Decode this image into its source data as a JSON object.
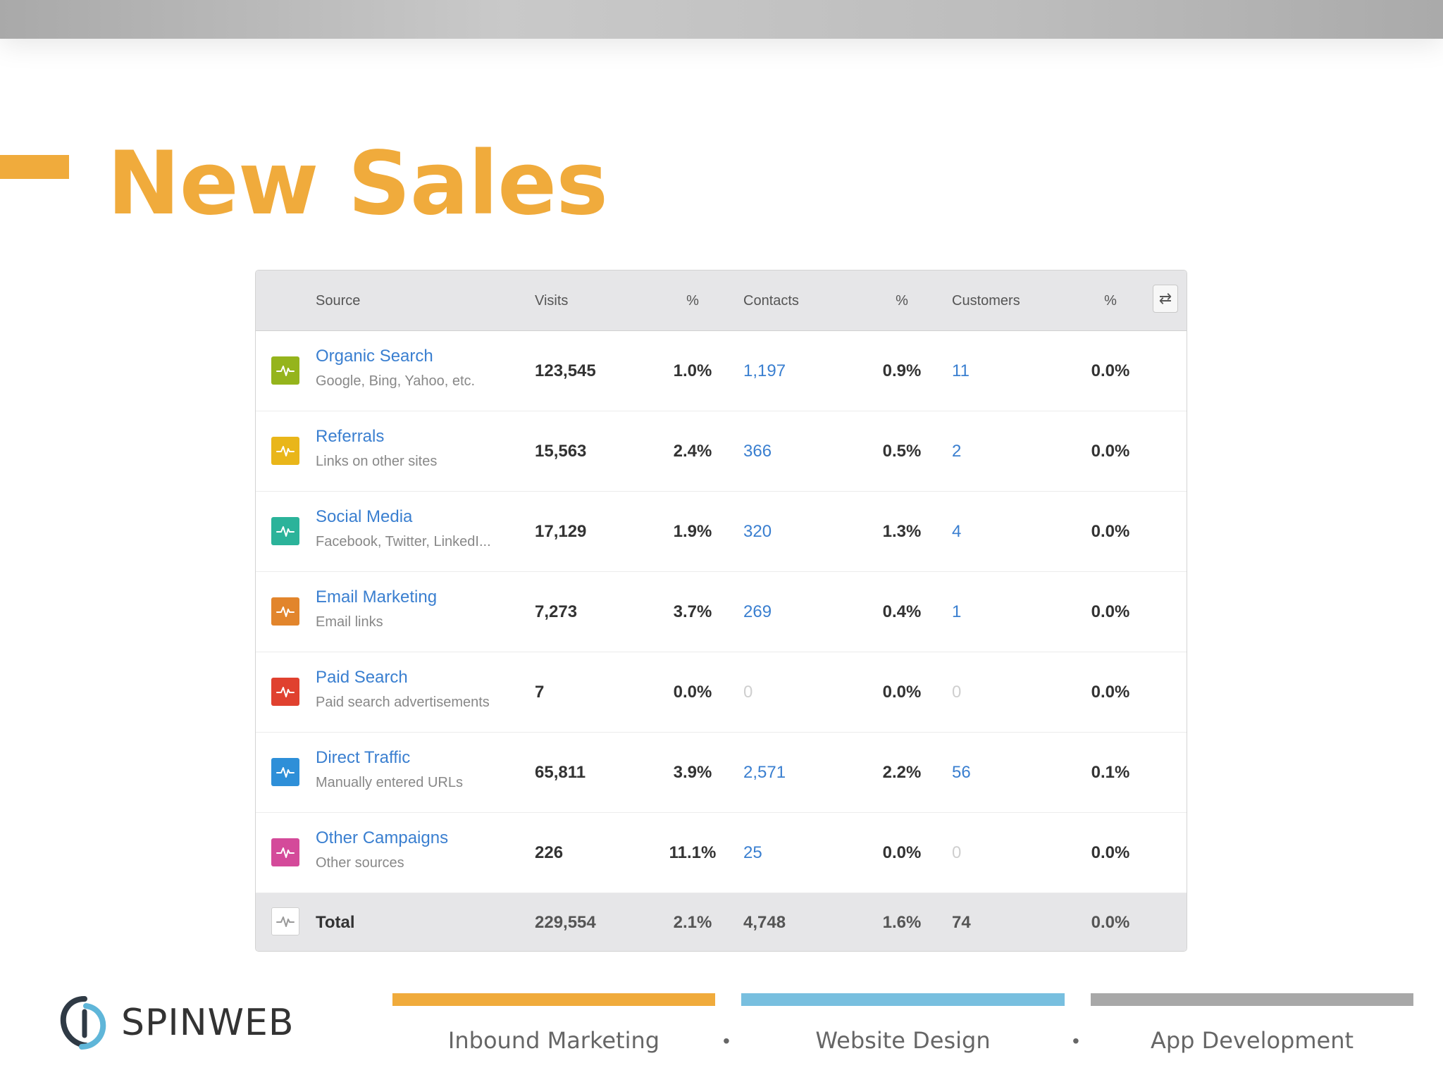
{
  "slide": {
    "title": "New Sales"
  },
  "table": {
    "headers": {
      "source": "Source",
      "visits": "Visits",
      "visits_pct": "%",
      "contacts": "Contacts",
      "contacts_pct": "%",
      "customers": "Customers",
      "customers_pct": "%"
    },
    "swap_icon": "swap-arrows-icon",
    "rows": [
      {
        "name": "Organic Search",
        "desc": "Google, Bing, Yahoo, etc.",
        "color": "#95b41c",
        "visits": "123,545",
        "visits_pct": "1.0%",
        "contacts": "1,197",
        "contacts_pct": "0.9%",
        "customers": "11",
        "customers_pct": "0.0%"
      },
      {
        "name": "Referrals",
        "desc": "Links on other sites",
        "color": "#e9b61a",
        "visits": "15,563",
        "visits_pct": "2.4%",
        "contacts": "366",
        "contacts_pct": "0.5%",
        "customers": "2",
        "customers_pct": "0.0%"
      },
      {
        "name": "Social Media",
        "desc": "Facebook, Twitter, LinkedI...",
        "color": "#2bb39a",
        "visits": "17,129",
        "visits_pct": "1.9%",
        "contacts": "320",
        "contacts_pct": "1.3%",
        "customers": "4",
        "customers_pct": "0.0%"
      },
      {
        "name": "Email Marketing",
        "desc": "Email links",
        "color": "#e2852c",
        "visits": "7,273",
        "visits_pct": "3.7%",
        "contacts": "269",
        "contacts_pct": "0.4%",
        "customers": "1",
        "customers_pct": "0.0%"
      },
      {
        "name": "Paid Search",
        "desc": "Paid search advertisements",
        "color": "#e0412f",
        "visits": "7",
        "visits_pct": "0.0%",
        "contacts": "0",
        "contacts_pct": "0.0%",
        "customers": "0",
        "customers_pct": "0.0%"
      },
      {
        "name": "Direct Traffic",
        "desc": "Manually entered URLs",
        "color": "#2e8fd8",
        "visits": "65,811",
        "visits_pct": "3.9%",
        "contacts": "2,571",
        "contacts_pct": "2.2%",
        "customers": "56",
        "customers_pct": "0.1%"
      },
      {
        "name": "Other Campaigns",
        "desc": "Other sources",
        "color": "#d44a9a",
        "visits": "226",
        "visits_pct": "11.1%",
        "contacts": "25",
        "contacts_pct": "0.0%",
        "customers": "0",
        "customers_pct": "0.0%"
      }
    ],
    "total": {
      "label": "Total",
      "visits": "229,554",
      "visits_pct": "2.1%",
      "contacts": "4,748",
      "contacts_pct": "1.6%",
      "customers": "74",
      "customers_pct": "0.0%"
    }
  },
  "footer": {
    "brand": "SPINWEB",
    "services": [
      "Inbound Marketing",
      "Website Design",
      "App Development"
    ],
    "separator": "•",
    "bar_colors": [
      "#f0ab3c",
      "#78bfdf",
      "#a8a8a8"
    ]
  },
  "colors": {
    "accent": "#f0ab3c",
    "link": "#3a7fd0"
  }
}
